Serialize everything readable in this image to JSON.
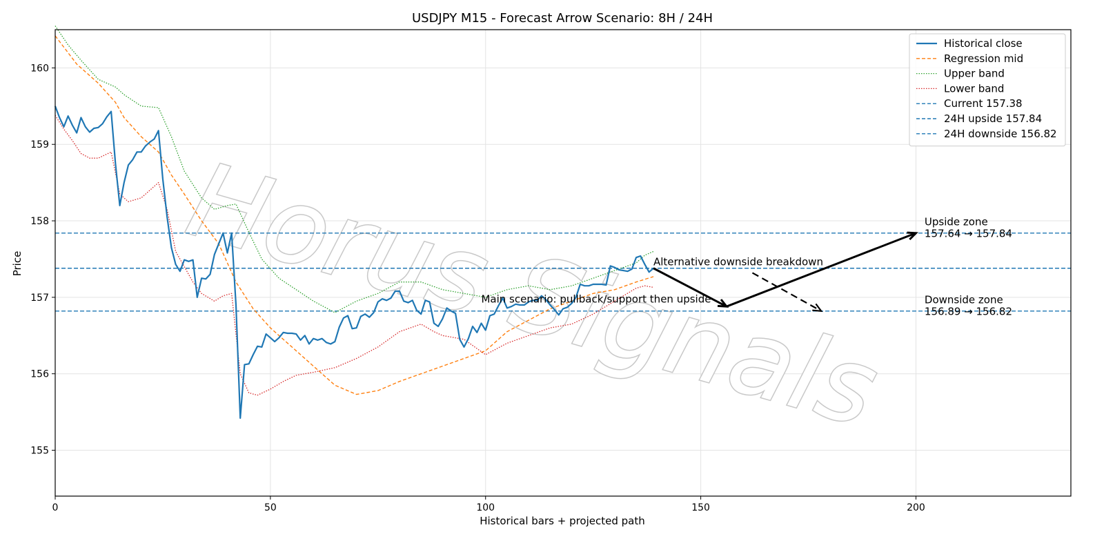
{
  "chart_data": {
    "type": "line",
    "title": "USDJPY M15 - Forecast Arrow Scenario: 8H / 24H",
    "xlabel": "Historical bars + projected path",
    "ylabel": "Price",
    "xlim": [
      0,
      236
    ],
    "ylim": [
      154.4,
      160.5
    ],
    "xticks": [
      0,
      50,
      100,
      150,
      200
    ],
    "yticks": [
      155,
      156,
      157,
      158,
      159,
      160
    ],
    "grid": true,
    "legend_position": "top-right",
    "watermark": "Horus Signals",
    "colors": {
      "historical": "#1f77b4",
      "regression": "#ff7f0e",
      "upper": "#2ca02c",
      "lower": "#d62728",
      "hline": "#1f77b4",
      "arrow": "#000000"
    },
    "series": [
      {
        "name": "Historical close",
        "style": "solid",
        "points": [
          [
            0,
            159.5
          ],
          [
            1,
            159.35
          ],
          [
            2,
            159.23
          ],
          [
            3,
            159.37
          ],
          [
            4,
            159.25
          ],
          [
            5,
            159.15
          ],
          [
            6,
            159.35
          ],
          [
            7,
            159.23
          ],
          [
            8,
            159.16
          ],
          [
            9,
            159.21
          ],
          [
            10,
            159.22
          ],
          [
            11,
            159.27
          ],
          [
            12,
            159.36
          ],
          [
            13,
            159.43
          ],
          [
            14,
            158.75
          ],
          [
            15,
            158.2
          ],
          [
            16,
            158.5
          ],
          [
            17,
            158.73
          ],
          [
            18,
            158.8
          ],
          [
            19,
            158.9
          ],
          [
            20,
            158.9
          ],
          [
            21,
            158.98
          ],
          [
            22,
            159.03
          ],
          [
            23,
            159.07
          ],
          [
            24,
            159.18
          ],
          [
            25,
            158.55
          ],
          [
            26,
            158.05
          ],
          [
            27,
            157.65
          ],
          [
            28,
            157.43
          ],
          [
            29,
            157.34
          ],
          [
            30,
            157.49
          ],
          [
            31,
            157.47
          ],
          [
            32,
            157.49
          ],
          [
            33,
            157.0
          ],
          [
            34,
            157.25
          ],
          [
            35,
            157.24
          ],
          [
            36,
            157.3
          ],
          [
            37,
            157.56
          ],
          [
            38,
            157.7
          ],
          [
            39,
            157.84
          ],
          [
            40,
            157.58
          ],
          [
            41,
            157.84
          ],
          [
            42,
            156.9
          ],
          [
            43,
            155.42
          ],
          [
            44,
            156.12
          ],
          [
            45,
            156.13
          ],
          [
            46,
            156.25
          ],
          [
            47,
            156.36
          ],
          [
            48,
            156.35
          ],
          [
            49,
            156.52
          ],
          [
            50,
            156.47
          ],
          [
            51,
            156.42
          ],
          [
            52,
            156.47
          ],
          [
            53,
            156.54
          ],
          [
            54,
            156.53
          ],
          [
            55,
            156.53
          ],
          [
            56,
            156.52
          ],
          [
            57,
            156.44
          ],
          [
            58,
            156.5
          ],
          [
            59,
            156.39
          ],
          [
            60,
            156.46
          ],
          [
            61,
            156.44
          ],
          [
            62,
            156.46
          ],
          [
            63,
            156.41
          ],
          [
            64,
            156.39
          ],
          [
            65,
            156.42
          ],
          [
            66,
            156.61
          ],
          [
            67,
            156.73
          ],
          [
            68,
            156.76
          ],
          [
            69,
            156.59
          ],
          [
            70,
            156.6
          ],
          [
            71,
            156.75
          ],
          [
            72,
            156.78
          ],
          [
            73,
            156.74
          ],
          [
            74,
            156.8
          ],
          [
            75,
            156.94
          ],
          [
            76,
            156.98
          ],
          [
            77,
            156.96
          ],
          [
            78,
            156.99
          ],
          [
            79,
            157.08
          ],
          [
            80,
            157.08
          ],
          [
            81,
            156.95
          ],
          [
            82,
            156.93
          ],
          [
            83,
            156.96
          ],
          [
            84,
            156.83
          ],
          [
            85,
            156.78
          ],
          [
            86,
            156.96
          ],
          [
            87,
            156.94
          ],
          [
            88,
            156.66
          ],
          [
            89,
            156.62
          ],
          [
            90,
            156.72
          ],
          [
            91,
            156.86
          ],
          [
            92,
            156.82
          ],
          [
            93,
            156.79
          ],
          [
            94,
            156.45
          ],
          [
            95,
            156.35
          ],
          [
            96,
            156.46
          ],
          [
            97,
            156.62
          ],
          [
            98,
            156.54
          ],
          [
            99,
            156.66
          ],
          [
            100,
            156.57
          ],
          [
            101,
            156.76
          ],
          [
            102,
            156.78
          ],
          [
            103,
            156.89
          ],
          [
            104,
            156.99
          ],
          [
            105,
            156.86
          ],
          [
            106,
            156.88
          ],
          [
            107,
            156.91
          ],
          [
            108,
            156.9
          ],
          [
            109,
            156.9
          ],
          [
            110,
            156.94
          ],
          [
            111,
            156.96
          ],
          [
            112,
            156.96
          ],
          [
            113,
            157.02
          ],
          [
            114,
            156.97
          ],
          [
            115,
            156.9
          ],
          [
            116,
            156.84
          ],
          [
            117,
            156.77
          ],
          [
            118,
            156.85
          ],
          [
            119,
            156.87
          ],
          [
            120,
            156.92
          ],
          [
            121,
            157.0
          ],
          [
            122,
            157.17
          ],
          [
            123,
            157.15
          ],
          [
            124,
            157.15
          ],
          [
            125,
            157.17
          ],
          [
            126,
            157.17
          ],
          [
            127,
            157.17
          ],
          [
            128,
            157.16
          ],
          [
            129,
            157.41
          ],
          [
            130,
            157.39
          ],
          [
            131,
            157.36
          ],
          [
            132,
            157.35
          ],
          [
            133,
            157.34
          ],
          [
            134,
            157.37
          ],
          [
            135,
            157.52
          ],
          [
            136,
            157.54
          ],
          [
            137,
            157.43
          ],
          [
            138,
            157.33
          ],
          [
            139,
            157.38
          ]
        ]
      },
      {
        "name": "Regression mid",
        "style": "dashed",
        "points": [
          [
            0,
            160.42
          ],
          [
            5,
            160.05
          ],
          [
            10,
            159.8
          ],
          [
            14,
            159.55
          ],
          [
            16,
            159.35
          ],
          [
            20,
            159.1
          ],
          [
            24,
            158.9
          ],
          [
            27,
            158.6
          ],
          [
            30,
            158.35
          ],
          [
            34,
            158.0
          ],
          [
            38,
            157.7
          ],
          [
            42,
            157.2
          ],
          [
            46,
            156.85
          ],
          [
            50,
            156.6
          ],
          [
            55,
            156.35
          ],
          [
            60,
            156.1
          ],
          [
            65,
            155.85
          ],
          [
            70,
            155.73
          ],
          [
            75,
            155.78
          ],
          [
            80,
            155.9
          ],
          [
            85,
            156.0
          ],
          [
            90,
            156.1
          ],
          [
            95,
            156.2
          ],
          [
            100,
            156.3
          ],
          [
            105,
            156.55
          ],
          [
            110,
            156.7
          ],
          [
            115,
            156.85
          ],
          [
            120,
            156.95
          ],
          [
            125,
            157.05
          ],
          [
            130,
            157.1
          ],
          [
            135,
            157.2
          ],
          [
            139,
            157.27
          ]
        ]
      },
      {
        "name": "Upper band",
        "style": "dotted",
        "points": [
          [
            0,
            160.55
          ],
          [
            3,
            160.3
          ],
          [
            6,
            160.1
          ],
          [
            10,
            159.85
          ],
          [
            14,
            159.75
          ],
          [
            16,
            159.65
          ],
          [
            20,
            159.5
          ],
          [
            24,
            159.48
          ],
          [
            27,
            159.1
          ],
          [
            30,
            158.65
          ],
          [
            34,
            158.3
          ],
          [
            37,
            158.15
          ],
          [
            40,
            158.2
          ],
          [
            42,
            158.22
          ],
          [
            45,
            157.85
          ],
          [
            48,
            157.5
          ],
          [
            52,
            157.25
          ],
          [
            56,
            157.1
          ],
          [
            60,
            156.95
          ],
          [
            65,
            156.8
          ],
          [
            70,
            156.95
          ],
          [
            75,
            157.05
          ],
          [
            80,
            157.2
          ],
          [
            85,
            157.2
          ],
          [
            90,
            157.1
          ],
          [
            95,
            157.05
          ],
          [
            100,
            157.0
          ],
          [
            105,
            157.1
          ],
          [
            110,
            157.15
          ],
          [
            115,
            157.1
          ],
          [
            120,
            157.15
          ],
          [
            125,
            157.25
          ],
          [
            130,
            157.35
          ],
          [
            135,
            157.45
          ],
          [
            137,
            157.55
          ],
          [
            139,
            157.6
          ]
        ]
      },
      {
        "name": "Lower band",
        "style": "dotted",
        "points": [
          [
            0,
            159.38
          ],
          [
            2,
            159.2
          ],
          [
            4,
            159.05
          ],
          [
            6,
            158.88
          ],
          [
            8,
            158.82
          ],
          [
            10,
            158.82
          ],
          [
            13,
            158.9
          ],
          [
            15,
            158.35
          ],
          [
            17,
            158.25
          ],
          [
            20,
            158.3
          ],
          [
            22,
            158.4
          ],
          [
            24,
            158.5
          ],
          [
            26,
            158.15
          ],
          [
            28,
            157.6
          ],
          [
            30,
            157.4
          ],
          [
            32,
            157.2
          ],
          [
            34,
            157.05
          ],
          [
            37,
            156.95
          ],
          [
            39,
            157.02
          ],
          [
            41,
            157.05
          ],
          [
            43,
            156.0
          ],
          [
            45,
            155.75
          ],
          [
            47,
            155.72
          ],
          [
            50,
            155.8
          ],
          [
            53,
            155.9
          ],
          [
            56,
            155.98
          ],
          [
            60,
            156.02
          ],
          [
            65,
            156.08
          ],
          [
            70,
            156.2
          ],
          [
            75,
            156.35
          ],
          [
            80,
            156.55
          ],
          [
            85,
            156.65
          ],
          [
            88,
            156.55
          ],
          [
            90,
            156.5
          ],
          [
            95,
            156.45
          ],
          [
            100,
            156.25
          ],
          [
            105,
            156.4
          ],
          [
            110,
            156.5
          ],
          [
            115,
            156.6
          ],
          [
            120,
            156.65
          ],
          [
            125,
            156.78
          ],
          [
            130,
            156.95
          ],
          [
            135,
            157.12
          ],
          [
            137,
            157.15
          ],
          [
            139,
            157.13
          ]
        ]
      }
    ],
    "hlines": [
      {
        "name": "Current 157.38",
        "y": 157.38
      },
      {
        "name": "24H upside 157.84",
        "y": 157.84
      },
      {
        "name": "24H downside 156.82",
        "y": 156.82
      }
    ],
    "arrows": [
      {
        "from": [
          139,
          157.38
        ],
        "to": [
          156,
          156.88
        ],
        "style": "solid"
      },
      {
        "from": [
          156,
          156.88
        ],
        "to": [
          200,
          157.84
        ],
        "style": "solid"
      },
      {
        "from": [
          162,
          157.32
        ],
        "to": [
          178,
          156.82
        ],
        "style": "dashed"
      }
    ],
    "annotations": [
      {
        "text": "Alternative downside breakdown",
        "x": 139,
        "y": 157.42
      },
      {
        "text": "Main scenario: pullback/support then upside",
        "x": 99,
        "y": 156.93
      },
      {
        "lines": [
          "Upside zone",
          "157.64 → 157.84"
        ],
        "x": 202,
        "y": 157.94
      },
      {
        "lines": [
          "Downside zone",
          "156.89 → 156.82"
        ],
        "x": 202,
        "y": 156.92
      }
    ]
  }
}
